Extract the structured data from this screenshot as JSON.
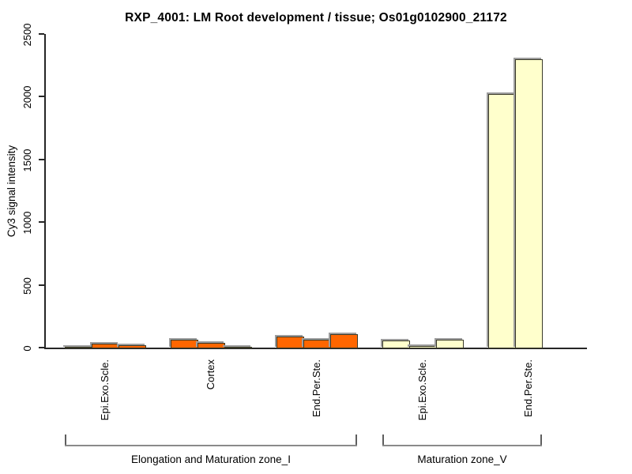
{
  "chart_data": {
    "type": "bar",
    "title": "RXP_4001: LM Root development / tissue; Os01g0102900_21172",
    "ylabel": "Cy3 signal intensity",
    "xlabel": "",
    "ylim": [
      0,
      2500
    ],
    "yticks": [
      "0",
      "500",
      "1000",
      "1500",
      "2000",
      "2500"
    ],
    "grid": false,
    "legend_position": "none",
    "style": {
      "bar_border": "#3a3a28",
      "bar_shadow": "#9e9e9e",
      "axis_color": "#262626",
      "bracket_color": "#8a8a8a",
      "background": "#ffffff",
      "zone_I_color": "#ff6600",
      "zone_V_color": "#ffffcc"
    },
    "groups": [
      {
        "zone": "Elongation and Maturation zone_I",
        "tissue": "Epi.Exo.Scle.",
        "color": "#ff6600",
        "values": [
          10,
          38,
          25
        ]
      },
      {
        "zone": "Elongation and Maturation zone_I",
        "tissue": "Cortex",
        "color": "#ff6600",
        "values": [
          72,
          42,
          11
        ]
      },
      {
        "zone": "Elongation and Maturation zone_I",
        "tissue": "End.Per.Ste.",
        "color": "#ff6600",
        "values": [
          92,
          69,
          116
        ]
      },
      {
        "zone": "Maturation zone_V",
        "tissue": "Epi.Exo.Scle.",
        "color": "#ffffcc",
        "values": [
          63,
          21,
          67
        ]
      },
      {
        "zone": "Maturation zone_V",
        "tissue": "End.Per.Ste.",
        "color": "#ffffcc",
        "values": [
          2025,
          2305,
          0
        ]
      }
    ],
    "zone_brackets": [
      {
        "label": "Elongation and Maturation zone_I"
      },
      {
        "label": "Maturation zone_V"
      }
    ]
  }
}
